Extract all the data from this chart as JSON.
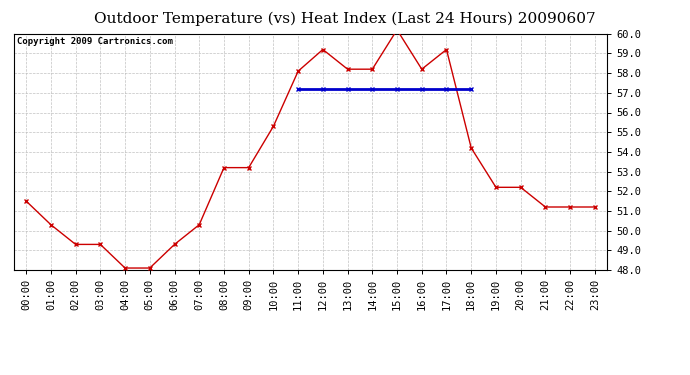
{
  "title": "Outdoor Temperature (vs) Heat Index (Last 24 Hours) 20090607",
  "copyright": "Copyright 2009 Cartronics.com",
  "hours": [
    "00:00",
    "01:00",
    "02:00",
    "03:00",
    "04:00",
    "05:00",
    "06:00",
    "07:00",
    "08:00",
    "09:00",
    "10:00",
    "11:00",
    "12:00",
    "13:00",
    "14:00",
    "15:00",
    "16:00",
    "17:00",
    "18:00",
    "19:00",
    "20:00",
    "21:00",
    "22:00",
    "23:00"
  ],
  "temp_x": [
    0,
    1,
    2,
    3,
    4,
    5,
    6,
    7,
    8,
    9,
    10,
    11,
    12,
    13,
    14,
    15,
    16,
    17,
    18,
    19,
    20,
    21,
    22,
    23
  ],
  "temp_y": [
    51.5,
    50.3,
    49.3,
    49.3,
    48.1,
    48.1,
    49.3,
    50.3,
    53.2,
    53.2,
    55.3,
    58.1,
    59.2,
    58.2,
    58.2,
    60.2,
    58.2,
    59.2,
    54.2,
    52.2,
    52.2,
    51.2,
    51.2,
    51.2
  ],
  "hi_x": [
    11,
    12,
    13,
    14,
    15,
    16,
    17,
    18
  ],
  "hi_y": [
    57.2,
    57.2,
    57.2,
    57.2,
    57.2,
    57.2,
    57.2,
    57.2
  ],
  "temp_color": "#cc0000",
  "heat_index_color": "#0000cc",
  "background_color": "#ffffff",
  "grid_color": "#bbbbbb",
  "ylim": [
    48.0,
    60.0
  ],
  "yticks": [
    48.0,
    49.0,
    50.0,
    51.0,
    52.0,
    53.0,
    54.0,
    55.0,
    56.0,
    57.0,
    58.0,
    59.0,
    60.0
  ],
  "title_fontsize": 11,
  "copyright_fontsize": 6.5,
  "tick_fontsize": 7.5
}
